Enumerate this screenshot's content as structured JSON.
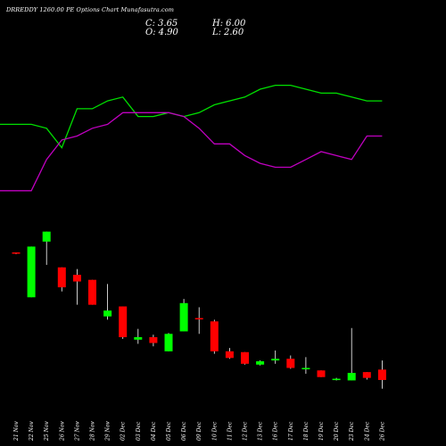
{
  "title": "DRREDDY 1260.00 PE Options Chart Munafasutra.com",
  "ohlc": {
    "c_label": "C:",
    "c_value": "3.65",
    "h_label": "H:",
    "h_value": "6.00",
    "o_label": "O:",
    "o_value": "4.90",
    "l_label": "L:",
    "l_value": "2.60"
  },
  "colors": {
    "background": "#000000",
    "bull": "#00ff00",
    "bear": "#ff0000",
    "line_green": "#00e000",
    "line_magenta": "#c000c0",
    "text": "#ffffff"
  },
  "chart_data": {
    "type": "candlestick",
    "categories": [
      "21 Nov",
      "22 Nov",
      "25 Nov",
      "26 Nov",
      "27 Nov",
      "28 Nov",
      "29 Nov",
      "02 Dec",
      "03 Dec",
      "04 Dec",
      "05 Dec",
      "06 Dec",
      "09 Dec",
      "10 Dec",
      "11 Dec",
      "12 Dec",
      "13 Dec",
      "16 Dec",
      "17 Dec",
      "18 Dec",
      "19 Dec",
      "20 Dec",
      "23 Dec",
      "24 Dec",
      "26 Dec"
    ],
    "ylim": [
      0,
      22
    ],
    "candles": [
      {
        "o": 19.0,
        "h": 19.0,
        "l": 18.8,
        "c": 18.9
      },
      {
        "o": 13.6,
        "h": 19.7,
        "l": 13.6,
        "c": 19.7
      },
      {
        "o": 20.3,
        "h": 21.5,
        "l": 17.5,
        "c": 21.5
      },
      {
        "o": 17.2,
        "h": 17.2,
        "l": 14.3,
        "c": 14.8
      },
      {
        "o": 16.3,
        "h": 17.0,
        "l": 12.7,
        "c": 15.5
      },
      {
        "o": 15.7,
        "h": 15.7,
        "l": 12.7,
        "c": 12.7
      },
      {
        "o": 11.3,
        "h": 15.2,
        "l": 10.9,
        "c": 12.0
      },
      {
        "o": 12.5,
        "h": 12.5,
        "l": 8.6,
        "c": 8.8
      },
      {
        "o": 8.5,
        "h": 9.8,
        "l": 8.0,
        "c": 8.8
      },
      {
        "o": 8.8,
        "h": 9.1,
        "l": 7.7,
        "c": 8.1
      },
      {
        "o": 7.1,
        "h": 9.3,
        "l": 7.1,
        "c": 9.2
      },
      {
        "o": 9.5,
        "h": 13.4,
        "l": 9.5,
        "c": 12.9
      },
      {
        "o": 11.1,
        "h": 12.4,
        "l": 9.2,
        "c": 11.0
      },
      {
        "o": 10.7,
        "h": 10.9,
        "l": 6.8,
        "c": 7.1
      },
      {
        "o": 7.1,
        "h": 7.5,
        "l": 6.2,
        "c": 6.3
      },
      {
        "o": 7.0,
        "h": 7.0,
        "l": 5.5,
        "c": 5.6
      },
      {
        "o": 5.5,
        "h": 6.0,
        "l": 5.4,
        "c": 5.9
      },
      {
        "o": 6.0,
        "h": 7.2,
        "l": 5.6,
        "c": 6.2
      },
      {
        "o": 6.2,
        "h": 6.6,
        "l": 5.0,
        "c": 5.1
      },
      {
        "o": 5.0,
        "h": 6.4,
        "l": 4.4,
        "c": 5.1
      },
      {
        "o": 4.8,
        "h": 4.8,
        "l": 4.0,
        "c": 4.0
      },
      {
        "o": 3.8,
        "h": 3.9,
        "l": 3.6,
        "c": 3.8
      },
      {
        "o": 3.6,
        "h": 9.9,
        "l": 3.6,
        "c": 4.5
      },
      {
        "o": 4.6,
        "h": 4.6,
        "l": 3.7,
        "c": 3.9
      },
      {
        "o": 4.9,
        "h": 6.0,
        "l": 2.6,
        "c": 3.65
      }
    ],
    "indicator_lines": {
      "green": [
        93,
        93,
        92,
        87,
        97,
        97,
        99,
        100,
        95,
        95,
        96,
        95,
        96,
        98,
        99,
        100,
        102,
        103,
        103,
        102,
        101,
        101,
        100,
        99,
        99
      ],
      "magenta": [
        76,
        76,
        84,
        89,
        90,
        92,
        93,
        96,
        96,
        96,
        96,
        95,
        92,
        88,
        88,
        85,
        83,
        82,
        82,
        84,
        86,
        85,
        84,
        90,
        90
      ]
    },
    "indicator_ylim": [
      70,
      110
    ]
  }
}
